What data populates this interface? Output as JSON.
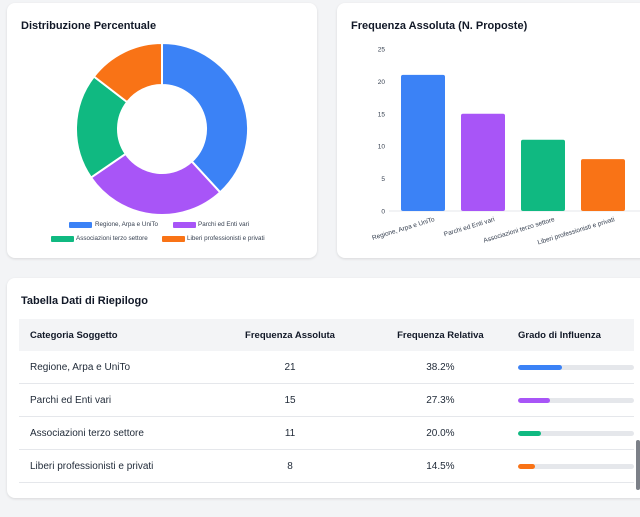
{
  "donut_card": {
    "title": "Distribuzione Percentuale"
  },
  "bar_card": {
    "title": "Frequenza Assoluta (N. Proposte)"
  },
  "table_card": {
    "title": "Tabella Dati di Riepilogo",
    "headers": [
      "Categoria Soggetto",
      "Frequenza Assoluta",
      "Frequenza Relativa",
      "Grado di Influenza"
    ],
    "rows": [
      {
        "category": "Regione, Arpa e UniTo",
        "absolute": "21",
        "relative": "38.2%",
        "influence": 0.382,
        "color": "#3b82f6"
      },
      {
        "category": "Parchi ed Enti vari",
        "absolute": "15",
        "relative": "27.3%",
        "influence": 0.273,
        "color": "#a855f7"
      },
      {
        "category": "Associazioni terzo settore",
        "absolute": "11",
        "relative": "20.0%",
        "influence": 0.2,
        "color": "#10b981"
      },
      {
        "category": "Liberi professionisti e privati",
        "absolute": "8",
        "relative": "14.5%",
        "influence": 0.145,
        "color": "#f97316"
      }
    ]
  },
  "chart_data": [
    {
      "type": "pie",
      "title": "Distribuzione Percentuale",
      "categories": [
        "Regione, Arpa e UniTo",
        "Parchi ed Enti vari",
        "Associazioni terzo settore",
        "Liberi professionisti e privati"
      ],
      "values": [
        21,
        15,
        11,
        8
      ],
      "colors": [
        "#3b82f6",
        "#a855f7",
        "#10b981",
        "#f97316"
      ],
      "legend": "bottom"
    },
    {
      "type": "bar",
      "title": "Frequenza Assoluta (N. Proposte)",
      "categories": [
        "Regione, Arpa e UniTo",
        "Parchi ed Enti vari",
        "Associazioni terzo settore",
        "Liberi professionisti e privati"
      ],
      "values": [
        21,
        15,
        11,
        8
      ],
      "colors": [
        "#3b82f6",
        "#a855f7",
        "#10b981",
        "#f97316"
      ],
      "yticks": [
        "0",
        "5",
        "10",
        "15",
        "20",
        "25"
      ],
      "ylim": [
        0,
        25
      ]
    }
  ]
}
